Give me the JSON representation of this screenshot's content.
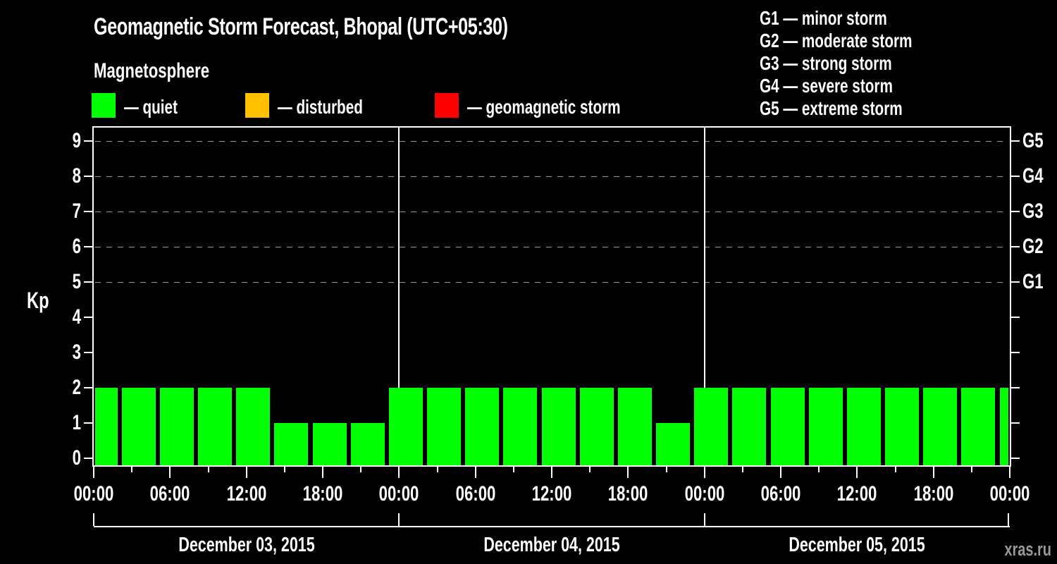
{
  "colors": {
    "background": "#000000",
    "text": "#ffffff",
    "axis": "#ffffff",
    "grid": "#999999",
    "quiet": "#00ff00",
    "disturbed": "#ffc000",
    "storm": "#ff0000",
    "watermark": "#999999"
  },
  "legend": {
    "items": [
      {
        "label": "— quiet",
        "swatch_color": "#00ff00"
      },
      {
        "label": "— disturbed",
        "swatch_color": "#ffc000"
      },
      {
        "label": "— geomagnetic storm",
        "swatch_color": "#ff0000"
      }
    ]
  },
  "g_legend": {
    "items": [
      "G1 — minor storm",
      "G2 — moderate storm",
      "G3 — strong storm",
      "G4 — severe storm",
      "G5 — extreme storm"
    ]
  },
  "watermark": "xras.ru",
  "chart_data": {
    "type": "bar",
    "title": "Geomagnetic Storm Forecast, Bhopal (UTC+05:30)",
    "subtitle": "Magnetosphere",
    "ylabel": "Kp",
    "ylim": [
      -0.25,
      9.4
    ],
    "y_ticks": [
      0,
      1,
      2,
      3,
      4,
      5,
      6,
      7,
      8,
      9
    ],
    "grid_levels": [
      5,
      6,
      7,
      8,
      9
    ],
    "right_axis_labels": [
      {
        "kp": 5,
        "label": "G1"
      },
      {
        "kp": 6,
        "label": "G2"
      },
      {
        "kp": 7,
        "label": "G3"
      },
      {
        "kp": 8,
        "label": "G4"
      },
      {
        "kp": 9,
        "label": "G5"
      }
    ],
    "x_hour_labels": [
      "00:00",
      "06:00",
      "12:00",
      "18:00"
    ],
    "x_final_label": "00:00",
    "bar_interval_hours": 3,
    "grid_on": true,
    "legend_position": "top-left",
    "days": [
      {
        "date": "December 03, 2015",
        "kp": [
          2,
          2,
          2,
          2,
          2,
          1,
          1,
          1
        ]
      },
      {
        "date": "December 04, 2015",
        "kp": [
          2,
          2,
          2,
          2,
          2,
          2,
          2,
          1
        ]
      },
      {
        "date": "December 05, 2015",
        "kp": [
          2,
          2,
          2,
          2,
          2,
          2,
          2,
          2
        ]
      }
    ],
    "trailing_partial_bar_kp": 2,
    "state_rules": {
      "quiet_max_kp": 3,
      "disturbed_kp": 4,
      "storm_min_kp": 5
    }
  }
}
